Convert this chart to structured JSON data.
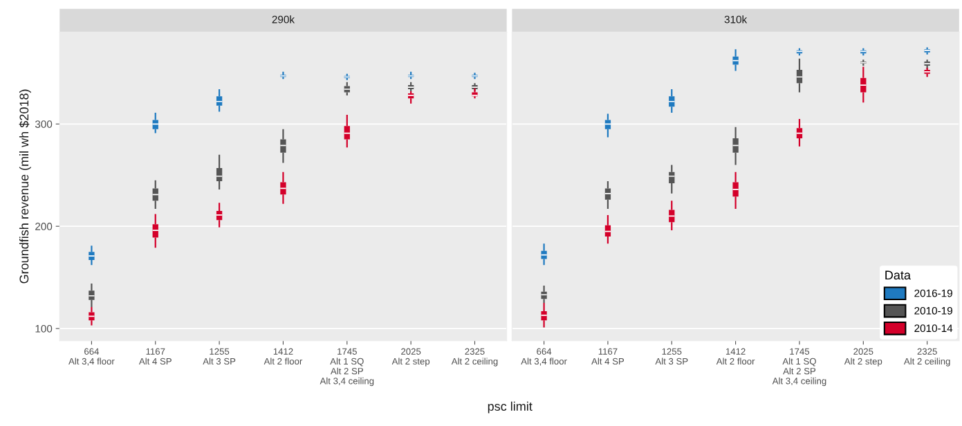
{
  "chart_data": [
    {
      "type": "box",
      "title": "290k",
      "xlabel": "psc limit",
      "ylabel": "Groundfish revenue (mil wh $2018)",
      "categories": [
        "664\nAlt 3,4 floor",
        "1167\nAlt 4 SP",
        "1255\nAlt 3 SP",
        "1412\nAlt 2 floor",
        "1745\nAlt 1 SQ\nAlt 2 SP\nAlt 3,4 ceiling",
        "2025\nAlt 2 step",
        "2325\nAlt 2 ceiling"
      ],
      "ylim": [
        88,
        390
      ],
      "yticks": [
        100,
        200,
        300
      ],
      "grid": "y",
      "legend": false,
      "series": [
        {
          "color": "#1f7ac0",
          "boxes": [
            {
              "low": 162,
              "q1": 167,
              "median": 171,
              "q3": 175,
              "high": 181
            },
            {
              "low": 291,
              "q1": 295,
              "median": 300,
              "q3": 304,
              "high": 311
            },
            {
              "low": 312,
              "q1": 318,
              "median": 322,
              "q3": 327,
              "high": 334
            },
            {
              "low": 344,
              "q1": 346,
              "median": 347,
              "q3": 348,
              "high": 351
            },
            {
              "low": 343,
              "q1": 345,
              "median": 346,
              "q3": 347,
              "high": 349
            },
            {
              "low": 344,
              "q1": 346,
              "median": 347,
              "q3": 348,
              "high": 351
            },
            {
              "low": 344,
              "q1": 346,
              "median": 347,
              "q3": 348,
              "high": 350
            }
          ]
        },
        {
          "color": "#555555",
          "boxes": [
            {
              "low": 121,
              "q1": 128,
              "median": 132,
              "q3": 137,
              "high": 144
            },
            {
              "low": 217,
              "q1": 225,
              "median": 231,
              "q3": 237,
              "high": 245
            },
            {
              "low": 236,
              "q1": 244,
              "median": 249,
              "q3": 257,
              "high": 270
            },
            {
              "low": 262,
              "q1": 272,
              "median": 279,
              "q3": 285,
              "high": 295
            },
            {
              "low": 328,
              "q1": 331,
              "median": 334,
              "q3": 337,
              "high": 341
            },
            {
              "low": 332,
              "q1": 334,
              "median": 336,
              "q3": 338,
              "high": 341
            },
            {
              "low": 332,
              "q1": 334,
              "median": 336,
              "q3": 338,
              "high": 340
            }
          ]
        },
        {
          "color": "#d4002a",
          "boxes": [
            {
              "low": 103,
              "q1": 108,
              "median": 112,
              "q3": 116,
              "high": 121
            },
            {
              "low": 179,
              "q1": 189,
              "median": 196,
              "q3": 202,
              "high": 212
            },
            {
              "low": 199,
              "q1": 206,
              "median": 211,
              "q3": 215,
              "high": 223
            },
            {
              "low": 222,
              "q1": 231,
              "median": 237,
              "q3": 243,
              "high": 253
            },
            {
              "low": 277,
              "q1": 285,
              "median": 291,
              "q3": 298,
              "high": 309
            },
            {
              "low": 320,
              "q1": 325,
              "median": 328,
              "q3": 330,
              "high": 332
            },
            {
              "low": 325,
              "q1": 327,
              "median": 328,
              "q3": 331,
              "high": 335
            }
          ]
        }
      ]
    },
    {
      "type": "box",
      "title": "310k",
      "legend_title": "Data",
      "tick_labels": "x",
      "categories": [
        "664\nAlt 3,4 floor",
        "1167\nAlt 4 SP",
        "1255\nAlt 3 SP",
        "1412\nAlt 2 floor",
        "1745\nAlt 1 SQ\nAlt 2 SP\nAlt 3,4 ceiling",
        "2025\nAlt 2 step",
        "2325\nAlt 2 ceiling"
      ],
      "ylim": [
        88,
        390
      ],
      "yticks": [
        100,
        200,
        300
      ],
      "grid": "y",
      "legend": "bottom right",
      "series": [
        {
          "name": "2016-19",
          "color": "#1f7ac0",
          "boxes": [
            {
              "low": 162,
              "q1": 168,
              "median": 172,
              "q3": 176,
              "high": 183
            },
            {
              "low": 287,
              "q1": 295,
              "median": 300,
              "q3": 304,
              "high": 310
            },
            {
              "low": 311,
              "q1": 317,
              "median": 322,
              "q3": 327,
              "high": 334
            },
            {
              "low": 352,
              "q1": 358,
              "median": 362,
              "q3": 366,
              "high": 373
            },
            {
              "low": 367,
              "q1": 369,
              "median": 371,
              "q3": 372,
              "high": 374
            },
            {
              "low": 367,
              "q1": 369,
              "median": 371,
              "q3": 372,
              "high": 374
            },
            {
              "low": 368,
              "q1": 370,
              "median": 372,
              "q3": 373,
              "high": 375
            }
          ]
        },
        {
          "name": "2010-19",
          "color": "#555555",
          "boxes": [
            {
              "low": 125,
              "q1": 129,
              "median": 133,
              "q3": 136,
              "high": 142
            },
            {
              "low": 217,
              "q1": 226,
              "median": 232,
              "q3": 237,
              "high": 244
            },
            {
              "low": 232,
              "q1": 242,
              "median": 249,
              "q3": 253,
              "high": 260
            },
            {
              "low": 260,
              "q1": 272,
              "median": 279,
              "q3": 286,
              "high": 297
            },
            {
              "low": 331,
              "q1": 340,
              "median": 346,
              "q3": 353,
              "high": 364
            },
            {
              "low": 357,
              "q1": 359,
              "median": 360,
              "q3": 361,
              "high": 363
            },
            {
              "low": 354,
              "q1": 357,
              "median": 359,
              "q3": 361,
              "high": 363
            }
          ]
        },
        {
          "name": "2010-14",
          "color": "#d4002a",
          "boxes": [
            {
              "low": 101,
              "q1": 108,
              "median": 113,
              "q3": 117,
              "high": 125
            },
            {
              "low": 183,
              "q1": 190,
              "median": 195,
              "q3": 201,
              "high": 211
            },
            {
              "low": 196,
              "q1": 204,
              "median": 210,
              "q3": 216,
              "high": 225
            },
            {
              "low": 217,
              "q1": 229,
              "median": 236,
              "q3": 243,
              "high": 253
            },
            {
              "low": 278,
              "q1": 286,
              "median": 291,
              "q3": 296,
              "high": 305
            },
            {
              "low": 321,
              "q1": 331,
              "median": 338,
              "q3": 345,
              "high": 356
            },
            {
              "low": 346,
              "q1": 349,
              "median": 351,
              "q3": 353,
              "high": 355
            }
          ]
        }
      ]
    }
  ]
}
